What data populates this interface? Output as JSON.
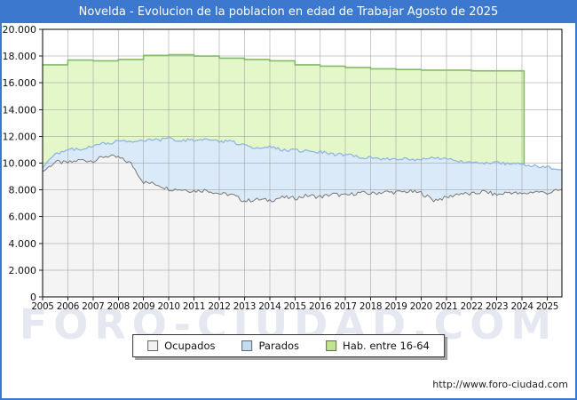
{
  "window": {
    "title": "Novelda - Evolucion de la poblacion en edad de Trabajar Agosto de 2025"
  },
  "watermark": "FORO-CIUDAD.COM",
  "footer": {
    "url": "http://www.foro-ciudad.com"
  },
  "colors": {
    "titlebar": "#3c78cd",
    "frame_border": "#3c78cd",
    "plot_border": "#000000",
    "grid": "rgba(150,150,150,0.5)",
    "ocupados_fill": "#f4f4f4",
    "ocupados_line": "#787878",
    "parados_fill": "#dbeaf8",
    "parados_line": "#8fb6e4",
    "hab_fill": "#e4f7c8",
    "hab_line": "#85ba68"
  },
  "chart_data": {
    "type": "area",
    "title": "Novelda - Evolucion de la poblacion en edad de Trabajar Agosto de 2025",
    "xlabel": "",
    "ylabel": "",
    "grid": true,
    "legend_position": "bottom",
    "x_axis": {
      "min": 2005,
      "max": 2025.58,
      "tick_years": [
        2005,
        2006,
        2007,
        2008,
        2009,
        2010,
        2011,
        2012,
        2013,
        2014,
        2015,
        2016,
        2017,
        2018,
        2019,
        2020,
        2021,
        2022,
        2023,
        2024,
        2025
      ]
    },
    "y_axis": {
      "min": 0,
      "max": 20000,
      "tick_step": 2000,
      "tick_labels": [
        "20.000",
        "18.000",
        "16.000",
        "14.000",
        "12.000",
        "10.000",
        "8.000",
        "6.000",
        "4.000",
        "2.000",
        "0"
      ]
    },
    "series": [
      {
        "name": "Ocupados",
        "stacking": "base",
        "x": [
          2005,
          2005.5,
          2006,
          2006.5,
          2007,
          2007.5,
          2008,
          2008.5,
          2009,
          2009.5,
          2010,
          2010.5,
          2011,
          2011.5,
          2012,
          2012.5,
          2013,
          2013.5,
          2014,
          2014.5,
          2015,
          2015.5,
          2016,
          2016.5,
          2017,
          2017.5,
          2018,
          2018.5,
          2019,
          2019.5,
          2020,
          2020.5,
          2021,
          2021.5,
          2022,
          2022.5,
          2023,
          2023.5,
          2024,
          2024.5,
          2025,
          2025.58
        ],
        "values": [
          9450,
          10000,
          10100,
          10150,
          10250,
          10450,
          10500,
          9900,
          8650,
          8350,
          8150,
          7950,
          8000,
          7900,
          7800,
          7550,
          7250,
          7200,
          7300,
          7350,
          7450,
          7500,
          7550,
          7600,
          7650,
          7700,
          7800,
          7750,
          7900,
          7800,
          7850,
          7150,
          7500,
          7650,
          7750,
          7800,
          7700,
          7750,
          7750,
          7800,
          7850,
          7900
        ]
      },
      {
        "name": "Parados",
        "stacking": "stacked-on-Ocupados",
        "x": [
          2005,
          2005.5,
          2006,
          2006.5,
          2007,
          2007.5,
          2008,
          2008.5,
          2009,
          2009.5,
          2010,
          2010.5,
          2011,
          2011.5,
          2012,
          2012.5,
          2013,
          2013.5,
          2014,
          2014.5,
          2015,
          2015.5,
          2016,
          2016.5,
          2017,
          2017.5,
          2018,
          2018.5,
          2019,
          2019.5,
          2020,
          2020.5,
          2021,
          2021.5,
          2022,
          2022.5,
          2023,
          2023.5,
          2024,
          2024.5,
          2025,
          2025.58
        ],
        "values": [
          200,
          750,
          850,
          950,
          1000,
          1050,
          1100,
          1800,
          3050,
          3400,
          3650,
          3800,
          3700,
          3850,
          3800,
          4100,
          4050,
          4000,
          3900,
          3700,
          3500,
          3400,
          3250,
          3100,
          2950,
          2800,
          2600,
          2550,
          2400,
          2500,
          2350,
          3250,
          2800,
          2500,
          2350,
          2250,
          2300,
          2200,
          2150,
          2000,
          1800,
          1600
        ]
      },
      {
        "name": "Hab. entre 16-64",
        "stacking": "overlay-total",
        "style": "annual-step",
        "x": [
          2005,
          2006,
          2007,
          2008,
          2009,
          2010,
          2011,
          2012,
          2013,
          2014,
          2015,
          2016,
          2017,
          2018,
          2019,
          2020,
          2021,
          2022,
          2023
        ],
        "values": [
          17350,
          17700,
          17650,
          17750,
          18050,
          18100,
          18000,
          17850,
          17750,
          17650,
          17350,
          17250,
          17150,
          17050,
          17000,
          16950,
          16950,
          16900,
          16900
        ],
        "end_x": 2024.08
      }
    ],
    "legend": [
      {
        "label": "Ocupados",
        "swatch": "#f2f2f2"
      },
      {
        "label": "Parados",
        "swatch": "#c3dcf2"
      },
      {
        "label": "Hab. entre 16-64",
        "swatch": "#bfe48d"
      }
    ]
  }
}
